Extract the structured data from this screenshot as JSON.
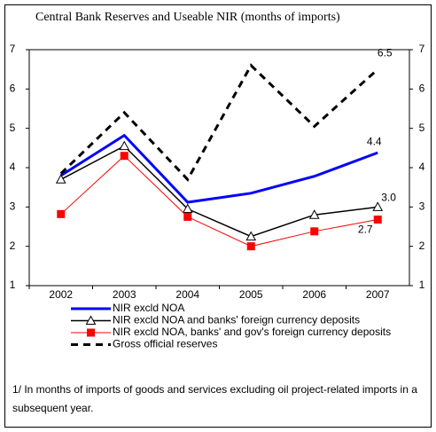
{
  "chart_data": {
    "type": "line",
    "title": "Central Bank Reserves and Useable NIR (months of imports)",
    "categories": [
      "2002",
      "2003",
      "2004",
      "2005",
      "2006",
      "2007"
    ],
    "series": [
      {
        "name": "NIR excld NOA",
        "color": "#0000ff",
        "values": [
          3.8,
          4.82,
          3.12,
          3.35,
          3.78,
          4.38
        ],
        "value_labels": [
          null,
          null,
          null,
          null,
          null,
          "4.4"
        ]
      },
      {
        "name": "NIR excld NOA and banks' foreign currency deposits",
        "color": "#000000",
        "marker": "triangle",
        "values": [
          3.7,
          4.55,
          2.95,
          2.25,
          2.8,
          3.0
        ],
        "value_labels": [
          null,
          null,
          null,
          null,
          null,
          "3.0"
        ]
      },
      {
        "name": "NIR excld NOA, banks' and gov's foreign currency deposits",
        "color": "#ff0000",
        "marker": "square",
        "values": [
          2.82,
          4.3,
          2.75,
          2.0,
          2.38,
          2.68
        ],
        "value_labels": [
          null,
          null,
          null,
          null,
          null,
          "2.7"
        ]
      },
      {
        "name": "Gross official reserves",
        "color": "#000000",
        "dashed": true,
        "values": [
          3.85,
          5.4,
          3.7,
          6.6,
          5.05,
          6.5
        ],
        "value_labels": [
          null,
          null,
          null,
          null,
          null,
          "6.5"
        ]
      }
    ],
    "ylim": [
      1,
      7
    ],
    "yticks": [
      1,
      2,
      3,
      4,
      5,
      6,
      7
    ],
    "y2lim": [
      1,
      7
    ],
    "y2ticks": [
      1,
      2,
      3,
      4,
      5,
      6,
      7
    ],
    "footnote": [
      "1/ In months of imports of goods and services excluding oil project-related imports in a",
      "subsequent year."
    ]
  }
}
